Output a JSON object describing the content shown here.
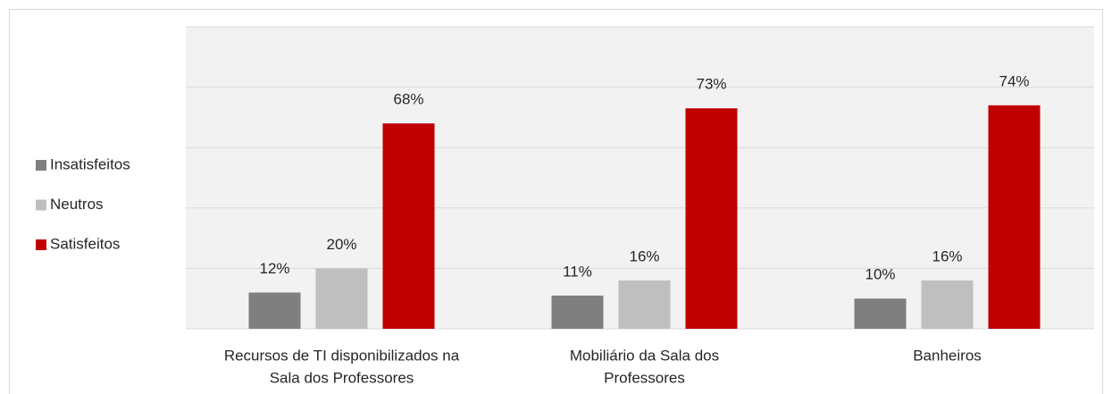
{
  "chart_data": {
    "type": "bar",
    "categories": [
      [
        "Recursos de TI disponibilizados na",
        "Sala dos Professores"
      ],
      [
        "Mobiliário  da Sala dos",
        "Professores"
      ],
      [
        "Banheiros"
      ]
    ],
    "series": [
      {
        "name": "Insatisfeitos",
        "color": "#7f7f7f",
        "values": [
          12,
          11,
          10
        ],
        "value_labels": [
          "12%",
          "11%",
          "10%"
        ]
      },
      {
        "name": "Neutros",
        "color": "#bfbfbf",
        "values": [
          20,
          16,
          16
        ],
        "value_labels": [
          "20%",
          "16%",
          "16%"
        ]
      },
      {
        "name": "Satisfeitos",
        "color": "#c00000",
        "values": [
          68,
          73,
          74
        ],
        "value_labels": [
          "68%",
          "73%",
          "74%"
        ]
      }
    ],
    "ylim": [
      0,
      100
    ],
    "yticks": [
      0,
      20,
      40,
      60,
      80,
      100
    ],
    "grid": true,
    "legend": "left"
  }
}
